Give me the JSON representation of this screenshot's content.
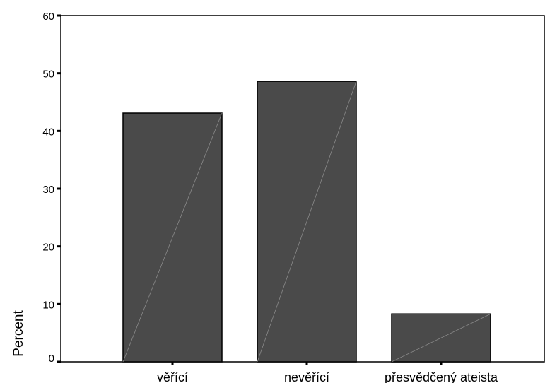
{
  "chart_data": {
    "type": "bar",
    "categories": [
      "věřící",
      "nevěřící",
      "přesvědčený ateista"
    ],
    "values": [
      43.1,
      48.6,
      8.3
    ],
    "ylabel": "Percent",
    "ylim": [
      0,
      60
    ],
    "yticks": [
      0,
      10,
      20,
      30,
      40,
      50,
      60
    ],
    "grid": false,
    "bar_color": "#4a4a4a",
    "stroke_color": "#000000"
  }
}
